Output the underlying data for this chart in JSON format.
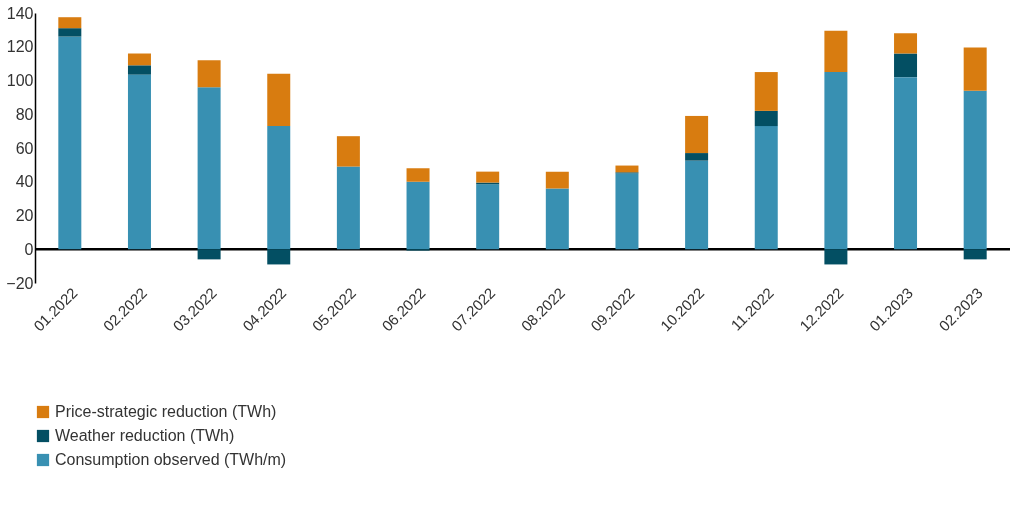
{
  "chart_data": {
    "type": "bar",
    "stacked": true,
    "categories": [
      "01.2022",
      "02.2022",
      "03.2022",
      "04.2022",
      "05.2022",
      "06.2022",
      "07.2022",
      "08.2022",
      "09.2022",
      "10.2022",
      "11.2022",
      "12.2022",
      "01.2023",
      "02.2023"
    ],
    "series": [
      {
        "name": "Consumption observed (TWh/m)",
        "color": "#3890b2",
        "values": [
          126,
          103.5,
          96,
          73,
          49,
          40,
          38.5,
          36,
          45,
          52.5,
          73,
          105,
          102,
          94
        ]
      },
      {
        "name": "Weather reduction (TWh)",
        "color": "#034f63",
        "values": [
          5,
          5.5,
          -6,
          -9,
          0,
          -0.8,
          1,
          0,
          0.6,
          4.5,
          9,
          -9,
          14,
          -6
        ]
      },
      {
        "name": "Price-strategic reduction (TWh)",
        "color": "#d87c10",
        "values": [
          6.5,
          7,
          16,
          31,
          18,
          8,
          6.5,
          10,
          4,
          22,
          23,
          24.5,
          12,
          25.5
        ]
      }
    ],
    "ylim": [
      -20,
      140
    ],
    "yticks": [
      -20,
      0,
      20,
      40,
      60,
      80,
      100,
      120,
      140
    ],
    "grid": false,
    "legend": "bottom left"
  }
}
